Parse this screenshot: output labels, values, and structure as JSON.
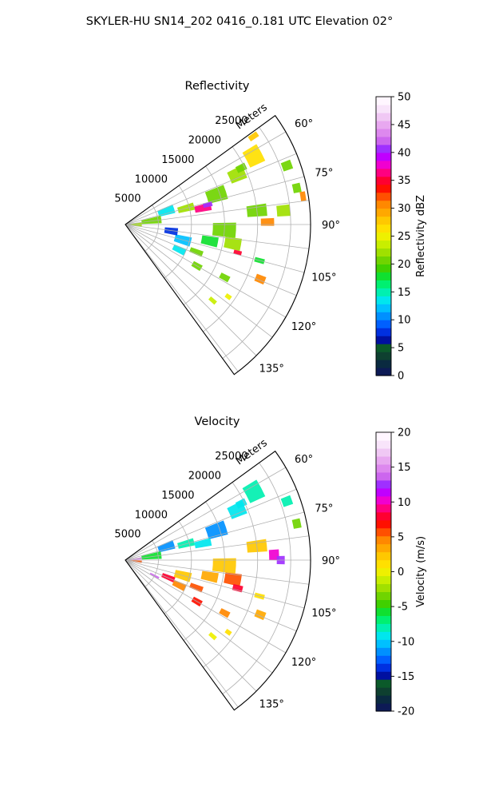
{
  "suptitle": "SKYLER-HU  SN14_202  0416_0.181 UTC Elevation 02°",
  "chart_data": [
    {
      "type": "heatmap",
      "projection": "polar-sector",
      "title": "Reflectivity",
      "radial_label": "Meters",
      "theta_range_deg": [
        54,
        144
      ],
      "r_max_m": 28000,
      "radial_ticks": [
        5000,
        10000,
        15000,
        20000,
        25000
      ],
      "angle_ticks": [
        60,
        75,
        90,
        105,
        120,
        135
      ],
      "angle_tick_labels": [
        "60°",
        "75°",
        "90°",
        "105°",
        "120°",
        "135°"
      ],
      "grid": true,
      "colorbar": {
        "label": "Reflectivity dBZ",
        "range": [
          0,
          50
        ],
        "ticks": [
          0,
          5,
          10,
          15,
          20,
          25,
          30,
          35,
          40,
          45,
          50
        ],
        "levels": [
          "#0d1a55",
          "#0a2a40",
          "#0e4030",
          "#0b5a2a",
          "#0010a0",
          "#0030e0",
          "#0060ff",
          "#0090ff",
          "#00c0ff",
          "#00e6ee",
          "#00f0b0",
          "#00f070",
          "#10e030",
          "#40d000",
          "#70d400",
          "#a0e000",
          "#c8ee00",
          "#eef000",
          "#ffe000",
          "#ffc800",
          "#ffa800",
          "#ff8800",
          "#ff5000",
          "#ff1000",
          "#ff0030",
          "#ff0080",
          "#f000d0",
          "#c000ff",
          "#9f30ff",
          "#cc66ee",
          "#dd88ee",
          "#e8a8f0",
          "#f0c8f4",
          "#f8e4fa",
          "#fff6ff"
        ]
      },
      "echo_regions": [
        {
          "r": 22000,
          "theta": 62,
          "dr": 2500,
          "dth": 7,
          "value": 27
        },
        {
          "r": 23500,
          "theta": 55.5,
          "dr": 1500,
          "dth": 2,
          "value": 28
        },
        {
          "r": 18500,
          "theta": 66,
          "dr": 2500,
          "dth": 6,
          "value": 22
        },
        {
          "r": 14500,
          "theta": 72,
          "dr": 3000,
          "dth": 8,
          "value": 20
        },
        {
          "r": 12000,
          "theta": 78,
          "dr": 2500,
          "dth": 5,
          "value": 36
        },
        {
          "r": 12800,
          "theta": 76.5,
          "dr": 1400,
          "dth": 3,
          "value": 40
        },
        {
          "r": 9500,
          "theta": 75,
          "dr": 2500,
          "dth": 6,
          "value": 22
        },
        {
          "r": 6500,
          "theta": 72,
          "dr": 2500,
          "dth": 10,
          "value": 13
        },
        {
          "r": 4000,
          "theta": 82,
          "dr": 3000,
          "dth": 12,
          "value": 20
        },
        {
          "r": 1500,
          "theta": 90,
          "dr": 2000,
          "dth": 14,
          "value": 22
        },
        {
          "r": 20000,
          "theta": 84,
          "dr": 3000,
          "dth": 5,
          "value": 20
        },
        {
          "r": 21500,
          "theta": 89,
          "dr": 2000,
          "dth": 3,
          "value": 30
        },
        {
          "r": 24000,
          "theta": 85,
          "dr": 2000,
          "dth": 4,
          "value": 22
        },
        {
          "r": 26500,
          "theta": 78,
          "dr": 1200,
          "dth": 3,
          "value": 20
        },
        {
          "r": 27200,
          "theta": 81,
          "dr": 800,
          "dth": 3,
          "value": 30
        },
        {
          "r": 15000,
          "theta": 93,
          "dr": 3500,
          "dth": 8,
          "value": 20
        },
        {
          "r": 16500,
          "theta": 100,
          "dr": 2500,
          "dth": 6,
          "value": 22
        },
        {
          "r": 17500,
          "theta": 104,
          "dr": 1200,
          "dth": 2,
          "value": 35
        },
        {
          "r": 13000,
          "theta": 101,
          "dr": 2500,
          "dth": 6,
          "value": 18
        },
        {
          "r": 9000,
          "theta": 105,
          "dr": 2500,
          "dth": 8,
          "value": 12
        },
        {
          "r": 9000,
          "theta": 115,
          "dr": 2000,
          "dth": 6,
          "value": 14
        },
        {
          "r": 11500,
          "theta": 111,
          "dr": 2000,
          "dth": 4,
          "value": 20
        },
        {
          "r": 7000,
          "theta": 98,
          "dr": 2000,
          "dth": 8,
          "value": 8
        },
        {
          "r": 12500,
          "theta": 120,
          "dr": 1500,
          "dth": 4,
          "value": 20
        },
        {
          "r": 17000,
          "theta": 118,
          "dr": 1500,
          "dth": 3,
          "value": 21
        },
        {
          "r": 22000,
          "theta": 112,
          "dr": 1500,
          "dth": 3,
          "value": 30
        },
        {
          "r": 21000,
          "theta": 105,
          "dr": 1500,
          "dth": 2,
          "value": 18
        },
        {
          "r": 17500,
          "theta": 131,
          "dr": 1200,
          "dth": 2,
          "value": 24
        },
        {
          "r": 19000,
          "theta": 125,
          "dr": 900,
          "dth": 2,
          "value": 25
        },
        {
          "r": 26000,
          "theta": 70,
          "dr": 1500,
          "dth": 3,
          "value": 20
        },
        {
          "r": 19500,
          "theta": 64,
          "dr": 1500,
          "dth": 3,
          "value": 20
        }
      ]
    },
    {
      "type": "heatmap",
      "projection": "polar-sector",
      "title": "Velocity",
      "radial_label": "Meters",
      "theta_range_deg": [
        54,
        144
      ],
      "r_max_m": 28000,
      "radial_ticks": [
        5000,
        10000,
        15000,
        20000,
        25000
      ],
      "angle_ticks": [
        60,
        75,
        90,
        105,
        120,
        135
      ],
      "angle_tick_labels": [
        "60°",
        "75°",
        "90°",
        "105°",
        "120°",
        "135°"
      ],
      "grid": true,
      "colorbar": {
        "label": "Velocity (m/s)",
        "range": [
          -20,
          20
        ],
        "ticks": [
          -20,
          -15,
          -10,
          -5,
          0,
          5,
          10,
          15,
          20
        ],
        "levels": [
          "#0d1a55",
          "#0a2a40",
          "#0e4030",
          "#0b5a2a",
          "#0010a0",
          "#0030e0",
          "#0060ff",
          "#0090ff",
          "#00c0ff",
          "#00e6ee",
          "#00f0b0",
          "#00f070",
          "#10e030",
          "#40d000",
          "#70d400",
          "#a0e000",
          "#c8ee00",
          "#eef000",
          "#ffe000",
          "#ffc800",
          "#ffa800",
          "#ff8800",
          "#ff5000",
          "#ff1000",
          "#ff0030",
          "#ff0080",
          "#f000d0",
          "#c000ff",
          "#9f30ff",
          "#cc66ee",
          "#dd88ee",
          "#e8a8f0",
          "#f0c8f4",
          "#f8e4fa",
          "#fff6ff"
        ]
      },
      "echo_regions": [
        {
          "r": 22000,
          "theta": 62,
          "dr": 2500,
          "dth": 7,
          "value": -8
        },
        {
          "r": 18500,
          "theta": 66,
          "dr": 2500,
          "dth": 6,
          "value": -9
        },
        {
          "r": 14500,
          "theta": 72,
          "dr": 3000,
          "dth": 8,
          "value": -11
        },
        {
          "r": 12000,
          "theta": 78,
          "dr": 2500,
          "dth": 5,
          "value": -9
        },
        {
          "r": 9500,
          "theta": 75,
          "dr": 2500,
          "dth": 6,
          "value": -8
        },
        {
          "r": 6500,
          "theta": 72,
          "dr": 2500,
          "dth": 10,
          "value": -12
        },
        {
          "r": 4000,
          "theta": 82,
          "dr": 3000,
          "dth": 12,
          "value": -6
        },
        {
          "r": 1500,
          "theta": 84,
          "dr": 2000,
          "dth": 8,
          "value": 15
        },
        {
          "r": 1500,
          "theta": 96,
          "dr": 2000,
          "dth": 8,
          "value": 6
        },
        {
          "r": 20000,
          "theta": 84,
          "dr": 3000,
          "dth": 5,
          "value": 2
        },
        {
          "r": 22500,
          "theta": 88,
          "dr": 1500,
          "dth": 4,
          "value": 10
        },
        {
          "r": 23500,
          "theta": 90,
          "dr": 1200,
          "dth": 3,
          "value": 12
        },
        {
          "r": 26500,
          "theta": 78,
          "dr": 1200,
          "dth": 3,
          "value": -3
        },
        {
          "r": 26000,
          "theta": 70,
          "dr": 1500,
          "dth": 3,
          "value": -8
        },
        {
          "r": 15000,
          "theta": 93,
          "dr": 3500,
          "dth": 8,
          "value": 2
        },
        {
          "r": 16500,
          "theta": 100,
          "dr": 2500,
          "dth": 6,
          "value": 6
        },
        {
          "r": 17500,
          "theta": 104,
          "dr": 1500,
          "dth": 3,
          "value": 8
        },
        {
          "r": 13000,
          "theta": 101,
          "dr": 2500,
          "dth": 6,
          "value": 3
        },
        {
          "r": 9000,
          "theta": 105,
          "dr": 2500,
          "dth": 8,
          "value": 2
        },
        {
          "r": 7000,
          "theta": 112,
          "dr": 2000,
          "dth": 6,
          "value": 8
        },
        {
          "r": 9000,
          "theta": 115,
          "dr": 2000,
          "dth": 6,
          "value": 4
        },
        {
          "r": 11500,
          "theta": 111,
          "dr": 2000,
          "dth": 4,
          "value": 6
        },
        {
          "r": 5000,
          "theta": 118,
          "dr": 1500,
          "dth": 3,
          "value": 14
        },
        {
          "r": 12500,
          "theta": 120,
          "dr": 1500,
          "dth": 4,
          "value": 7
        },
        {
          "r": 17000,
          "theta": 118,
          "dr": 1500,
          "dth": 3,
          "value": 5
        },
        {
          "r": 22000,
          "theta": 112,
          "dr": 1500,
          "dth": 3,
          "value": 3
        },
        {
          "r": 21000,
          "theta": 105,
          "dr": 1500,
          "dth": 2,
          "value": 1
        },
        {
          "r": 17500,
          "theta": 131,
          "dr": 1200,
          "dth": 2,
          "value": 0
        },
        {
          "r": 19000,
          "theta": 125,
          "dr": 900,
          "dth": 2,
          "value": 1
        },
        {
          "r": 19500,
          "theta": 64,
          "dr": 1500,
          "dth": 3,
          "value": -9
        }
      ]
    }
  ]
}
